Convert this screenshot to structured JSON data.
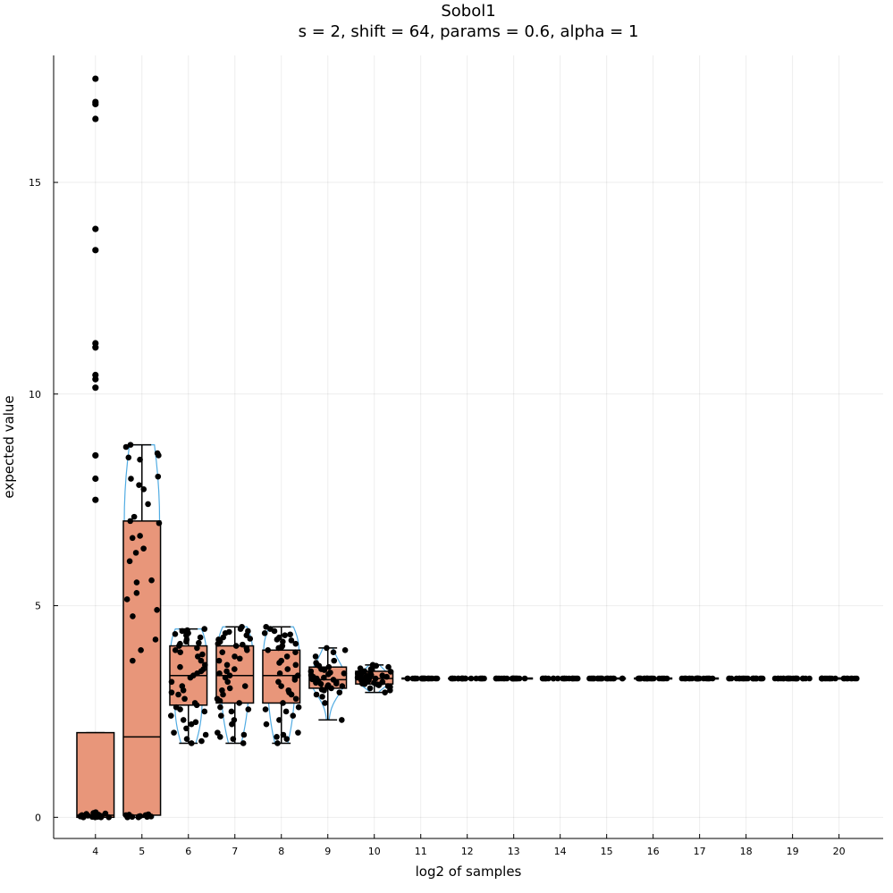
{
  "chart_data": {
    "type": "box",
    "title": "Sobol1",
    "subtitle": "s = 2, shift = 64, params = 0.6, alpha = 1",
    "xlabel": "log2 of samples",
    "ylabel": "expected value",
    "categories": [
      "4",
      "5",
      "6",
      "7",
      "8",
      "9",
      "10",
      "11",
      "12",
      "13",
      "14",
      "15",
      "16",
      "17",
      "18",
      "19",
      "20"
    ],
    "x_ticks": [
      "4",
      "5",
      "6",
      "7",
      "8",
      "9",
      "10",
      "11",
      "12",
      "13",
      "14",
      "15",
      "16",
      "17",
      "18",
      "19",
      "20"
    ],
    "y_ticks": [
      "0",
      "5",
      "10",
      "15"
    ],
    "y_tick_values": [
      0,
      5,
      10,
      15
    ],
    "xlim": [
      3.1,
      20.95
    ],
    "ylim": [
      -0.5,
      18.0
    ],
    "grid": true,
    "legend": "none",
    "colors": {
      "box_fill": "#e8967a",
      "violin": "#3ea3e0",
      "points": "#000000"
    },
    "boxes": [
      {
        "x": 4,
        "q1": 0.0,
        "median": 0.05,
        "q3": 2.0,
        "whisker_low": 0.0,
        "whisker_high": 2.0
      },
      {
        "x": 5,
        "q1": 0.05,
        "median": 1.9,
        "q3": 7.0,
        "whisker_low": 0.0,
        "whisker_high": 8.8
      },
      {
        "x": 6,
        "q1": 2.65,
        "median": 3.35,
        "q3": 4.05,
        "whisker_low": 1.75,
        "whisker_high": 4.45
      },
      {
        "x": 7,
        "q1": 2.7,
        "median": 3.35,
        "q3": 4.05,
        "whisker_low": 1.75,
        "whisker_high": 4.5
      },
      {
        "x": 8,
        "q1": 2.7,
        "median": 3.35,
        "q3": 3.95,
        "whisker_low": 1.75,
        "whisker_high": 4.5
      },
      {
        "x": 9,
        "q1": 3.05,
        "median": 3.25,
        "q3": 3.55,
        "whisker_low": 2.3,
        "whisker_high": 4.0
      },
      {
        "x": 10,
        "q1": 3.15,
        "median": 3.28,
        "q3": 3.45,
        "whisker_low": 2.95,
        "whisker_high": 3.6
      },
      {
        "x": 11,
        "q1": 3.27,
        "median": 3.28,
        "q3": 3.29,
        "whisker_low": 3.26,
        "whisker_high": 3.3
      },
      {
        "x": 12,
        "q1": 3.27,
        "median": 3.28,
        "q3": 3.29,
        "whisker_low": 3.26,
        "whisker_high": 3.3
      },
      {
        "x": 13,
        "q1": 3.27,
        "median": 3.28,
        "q3": 3.29,
        "whisker_low": 3.27,
        "whisker_high": 3.29
      },
      {
        "x": 14,
        "q1": 3.27,
        "median": 3.28,
        "q3": 3.29,
        "whisker_low": 3.27,
        "whisker_high": 3.29
      },
      {
        "x": 15,
        "q1": 3.27,
        "median": 3.28,
        "q3": 3.29,
        "whisker_low": 3.27,
        "whisker_high": 3.29
      },
      {
        "x": 16,
        "q1": 3.27,
        "median": 3.28,
        "q3": 3.29,
        "whisker_low": 3.27,
        "whisker_high": 3.29
      },
      {
        "x": 17,
        "q1": 3.27,
        "median": 3.28,
        "q3": 3.29,
        "whisker_low": 3.27,
        "whisker_high": 3.29
      },
      {
        "x": 18,
        "q1": 3.27,
        "median": 3.28,
        "q3": 3.29,
        "whisker_low": 3.27,
        "whisker_high": 3.29
      },
      {
        "x": 19,
        "q1": 3.27,
        "median": 3.28,
        "q3": 3.29,
        "whisker_low": 3.27,
        "whisker_high": 3.29
      },
      {
        "x": 20,
        "q1": 3.27,
        "median": 3.28,
        "q3": 3.29,
        "whisker_low": 3.27,
        "whisker_high": 3.29
      }
    ],
    "outliers": [
      {
        "x": 4,
        "values": [
          17.45,
          16.9,
          16.85,
          16.5,
          13.9,
          13.4,
          11.2,
          11.1,
          10.45,
          10.35,
          10.15,
          8.55,
          8.0,
          7.5
        ]
      }
    ],
    "point_series": [
      {
        "x": 4,
        "values": [
          0.0,
          0.02,
          0.05,
          0.08,
          0.1,
          0.12,
          0.03,
          0.0,
          0.06,
          0.01,
          0.04,
          0.09,
          0.0,
          0.02,
          0.07,
          0.05,
          0.03,
          0.0,
          0.01,
          0.11
        ]
      },
      {
        "x": 5,
        "values": [
          8.8,
          8.75,
          8.6,
          8.55,
          8.5,
          8.45,
          8.05,
          8.0,
          7.85,
          7.75,
          7.4,
          7.1,
          7.0,
          6.95,
          6.65,
          6.6,
          6.35,
          6.25,
          6.05,
          5.6,
          5.55,
          5.3,
          5.15,
          4.9,
          4.75,
          4.2,
          3.95,
          3.7,
          0.05,
          0.0,
          0.02,
          0.04,
          0.06,
          0.01,
          0.03,
          0.0,
          0.05,
          0.02,
          0.07,
          0.01
        ]
      },
      {
        "x": 6,
        "values": [
          4.45,
          4.4,
          4.38,
          4.35,
          4.3,
          4.25,
          4.2,
          4.15,
          4.1,
          4.05,
          4.0,
          3.95,
          3.9,
          3.8,
          3.7,
          3.6,
          3.5,
          3.45,
          3.4,
          3.35,
          3.3,
          3.2,
          3.1,
          3.0,
          2.9,
          2.8,
          2.7,
          2.65,
          2.55,
          2.5,
          2.4,
          2.3,
          2.2,
          2.1,
          2.0,
          1.95,
          1.85,
          1.8,
          1.75,
          4.42,
          4.33,
          4.12,
          3.85,
          3.55,
          2.95,
          2.6,
          2.25
        ]
      },
      {
        "x": 7,
        "values": [
          4.5,
          4.45,
          4.4,
          4.35,
          4.3,
          4.25,
          4.2,
          4.15,
          4.1,
          4.05,
          4.0,
          3.95,
          3.9,
          3.8,
          3.7,
          3.6,
          3.5,
          3.4,
          3.35,
          3.3,
          3.2,
          3.1,
          3.0,
          2.9,
          2.8,
          2.7,
          2.6,
          2.5,
          2.4,
          2.3,
          2.2,
          2.0,
          1.95,
          1.85,
          1.75,
          4.38,
          4.22,
          4.08,
          3.75,
          3.45,
          3.05,
          2.75,
          2.55,
          1.9
        ]
      },
      {
        "x": 8,
        "values": [
          4.5,
          4.45,
          4.4,
          4.35,
          4.3,
          4.25,
          4.2,
          4.15,
          4.1,
          4.05,
          4.0,
          3.95,
          3.9,
          3.8,
          3.7,
          3.6,
          3.5,
          3.4,
          3.35,
          3.3,
          3.2,
          3.1,
          3.0,
          2.9,
          2.8,
          2.7,
          2.6,
          2.5,
          2.4,
          2.3,
          2.2,
          2.0,
          1.95,
          1.85,
          1.75,
          4.32,
          4.18,
          4.02,
          3.65,
          3.25,
          2.95,
          2.55,
          1.9
        ]
      },
      {
        "x": 9,
        "values": [
          4.0,
          3.95,
          3.9,
          3.8,
          3.7,
          3.65,
          3.6,
          3.55,
          3.5,
          3.45,
          3.4,
          3.38,
          3.35,
          3.3,
          3.28,
          3.25,
          3.22,
          3.2,
          3.15,
          3.1,
          3.05,
          3.0,
          2.95,
          2.9,
          2.85,
          2.7,
          2.3,
          3.42,
          3.32,
          3.18,
          3.08,
          3.58,
          3.48,
          3.12,
          3.02,
          3.36,
          3.26,
          3.16
        ]
      },
      {
        "x": 10,
        "values": [
          3.6,
          3.58,
          3.55,
          3.52,
          3.5,
          3.45,
          3.42,
          3.4,
          3.38,
          3.35,
          3.32,
          3.3,
          3.28,
          3.26,
          3.25,
          3.22,
          3.2,
          3.18,
          3.15,
          3.12,
          3.1,
          3.08,
          3.05,
          3.0,
          2.95,
          3.36,
          3.31,
          3.27,
          3.24,
          3.19,
          3.14,
          3.44,
          3.34,
          3.29,
          3.21,
          3.16
        ]
      },
      {
        "x": 11,
        "values": [
          3.28,
          3.28,
          3.28,
          3.28,
          3.28,
          3.28,
          3.28,
          3.28,
          3.28,
          3.28,
          3.28,
          3.28,
          3.28,
          3.28,
          3.28,
          3.28,
          3.28,
          3.28,
          3.28,
          3.28
        ]
      },
      {
        "x": 12,
        "values": [
          3.28,
          3.28,
          3.28,
          3.28,
          3.28,
          3.28,
          3.28,
          3.28,
          3.28,
          3.28,
          3.28,
          3.28,
          3.28,
          3.28,
          3.28,
          3.28,
          3.28,
          3.28,
          3.28,
          3.28
        ]
      },
      {
        "x": 13,
        "values": [
          3.28,
          3.28,
          3.28,
          3.28,
          3.28,
          3.28,
          3.28,
          3.28,
          3.28,
          3.28,
          3.28,
          3.28,
          3.28,
          3.28,
          3.28,
          3.28,
          3.28,
          3.28,
          3.28,
          3.28
        ]
      },
      {
        "x": 14,
        "values": [
          3.28,
          3.28,
          3.28,
          3.28,
          3.28,
          3.28,
          3.28,
          3.28,
          3.28,
          3.28,
          3.28,
          3.28,
          3.28,
          3.28,
          3.28,
          3.28,
          3.28,
          3.28,
          3.28,
          3.28
        ]
      },
      {
        "x": 15,
        "values": [
          3.28,
          3.28,
          3.28,
          3.28,
          3.28,
          3.28,
          3.28,
          3.28,
          3.28,
          3.28,
          3.28,
          3.28,
          3.28,
          3.28,
          3.28,
          3.28,
          3.28,
          3.28,
          3.28,
          3.28
        ]
      },
      {
        "x": 16,
        "values": [
          3.28,
          3.28,
          3.28,
          3.28,
          3.28,
          3.28,
          3.28,
          3.28,
          3.28,
          3.28,
          3.28,
          3.28,
          3.28,
          3.28,
          3.28,
          3.28,
          3.28,
          3.28,
          3.28,
          3.28
        ]
      },
      {
        "x": 17,
        "values": [
          3.28,
          3.28,
          3.28,
          3.28,
          3.28,
          3.28,
          3.28,
          3.28,
          3.28,
          3.28,
          3.28,
          3.28,
          3.28,
          3.28,
          3.28,
          3.28,
          3.28,
          3.28,
          3.28,
          3.28
        ]
      },
      {
        "x": 18,
        "values": [
          3.28,
          3.28,
          3.28,
          3.28,
          3.28,
          3.28,
          3.28,
          3.28,
          3.28,
          3.28,
          3.28,
          3.28,
          3.28,
          3.28,
          3.28,
          3.28,
          3.28,
          3.28,
          3.28,
          3.28
        ]
      },
      {
        "x": 19,
        "values": [
          3.28,
          3.28,
          3.28,
          3.28,
          3.28,
          3.28,
          3.28,
          3.28,
          3.28,
          3.28,
          3.28,
          3.28,
          3.28,
          3.28,
          3.28,
          3.28,
          3.28,
          3.28,
          3.28,
          3.28
        ]
      },
      {
        "x": 20,
        "values": [
          3.28,
          3.28,
          3.28,
          3.28,
          3.28,
          3.28,
          3.28,
          3.28,
          3.28,
          3.28,
          3.28,
          3.28,
          3.28,
          3.28,
          3.28,
          3.28,
          3.28,
          3.28,
          3.28,
          3.28
        ]
      }
    ]
  }
}
